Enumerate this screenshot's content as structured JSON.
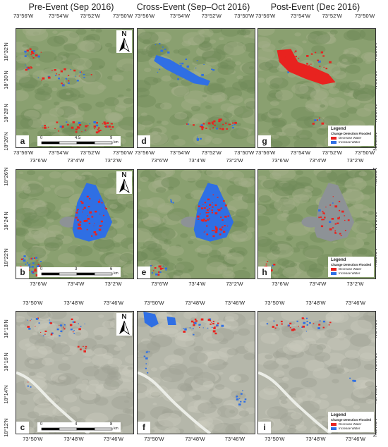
{
  "columns": [
    {
      "title": "Pre-Event  (Sep 2016)"
    },
    {
      "title": "Cross-Event  (Sep–Oct 2016)"
    },
    {
      "title": "Post-Event  (Dec 2016)"
    }
  ],
  "rows": [
    {
      "x_ticks": [
        "73°56'W",
        "73°54'W",
        "73°52'W",
        "73°50'W"
      ],
      "y_ticks": [
        "18°32'N",
        "18°30'N",
        "18°28'N",
        "18°26'N"
      ],
      "scale": {
        "labels": [
          "0",
          "4.5",
          "9"
        ],
        "unit": "km"
      }
    },
    {
      "x_ticks": [
        "73°6'W",
        "73°4'W",
        "73°2'W"
      ],
      "y_ticks": [
        "18°26'N",
        "18°24'N",
        "18°22'N"
      ],
      "scale": {
        "labels": [
          "0",
          "3",
          "6"
        ],
        "unit": "km"
      }
    },
    {
      "x_ticks": [
        "73°50'W",
        "73°48'W",
        "73°46'W"
      ],
      "y_ticks": [
        "18°18'N",
        "18°16'N",
        "18°14'N",
        "18°12'N"
      ],
      "scale": {
        "labels": [
          "0",
          "4",
          "8"
        ],
        "unit": "km"
      }
    }
  ],
  "panels": [
    {
      "label": "a",
      "legend": null
    },
    {
      "label": "d",
      "legend": null
    },
    {
      "label": "g",
      "legend": {
        "title": "Legend",
        "subtitle": "Change Detection Flooded",
        "items": [
          {
            "label": "Decrease Water",
            "color": "#e8231f"
          },
          {
            "label": "Increase Water",
            "color": "#2f6fe4"
          }
        ]
      }
    },
    {
      "label": "b",
      "legend": null
    },
    {
      "label": "e",
      "legend": null
    },
    {
      "label": "h",
      "legend": {
        "title": "Legend",
        "subtitle": "Change Detection Flooded",
        "items": [
          {
            "label": "Decrease Water",
            "color": "#e8231f"
          },
          {
            "label": "Increase Water",
            "color": "#2f6fe4"
          }
        ]
      }
    },
    {
      "label": "c",
      "legend": null
    },
    {
      "label": "f",
      "legend": null
    },
    {
      "label": "i",
      "legend": {
        "title": "Legend",
        "subtitle": "Change Detection Flooded",
        "items": [
          {
            "label": "Decrease Water",
            "color": "#e8231f"
          },
          {
            "label": "Increase Water",
            "color": "#2f6fe4"
          }
        ]
      }
    }
  ],
  "north_arrow": {
    "label": "N"
  },
  "colors": {
    "decrease": "#e8231f",
    "increase": "#2f6fe4",
    "terrain_green": "#8aa070",
    "terrain_light": "#b5b7aa",
    "lake": "#8d9296"
  }
}
